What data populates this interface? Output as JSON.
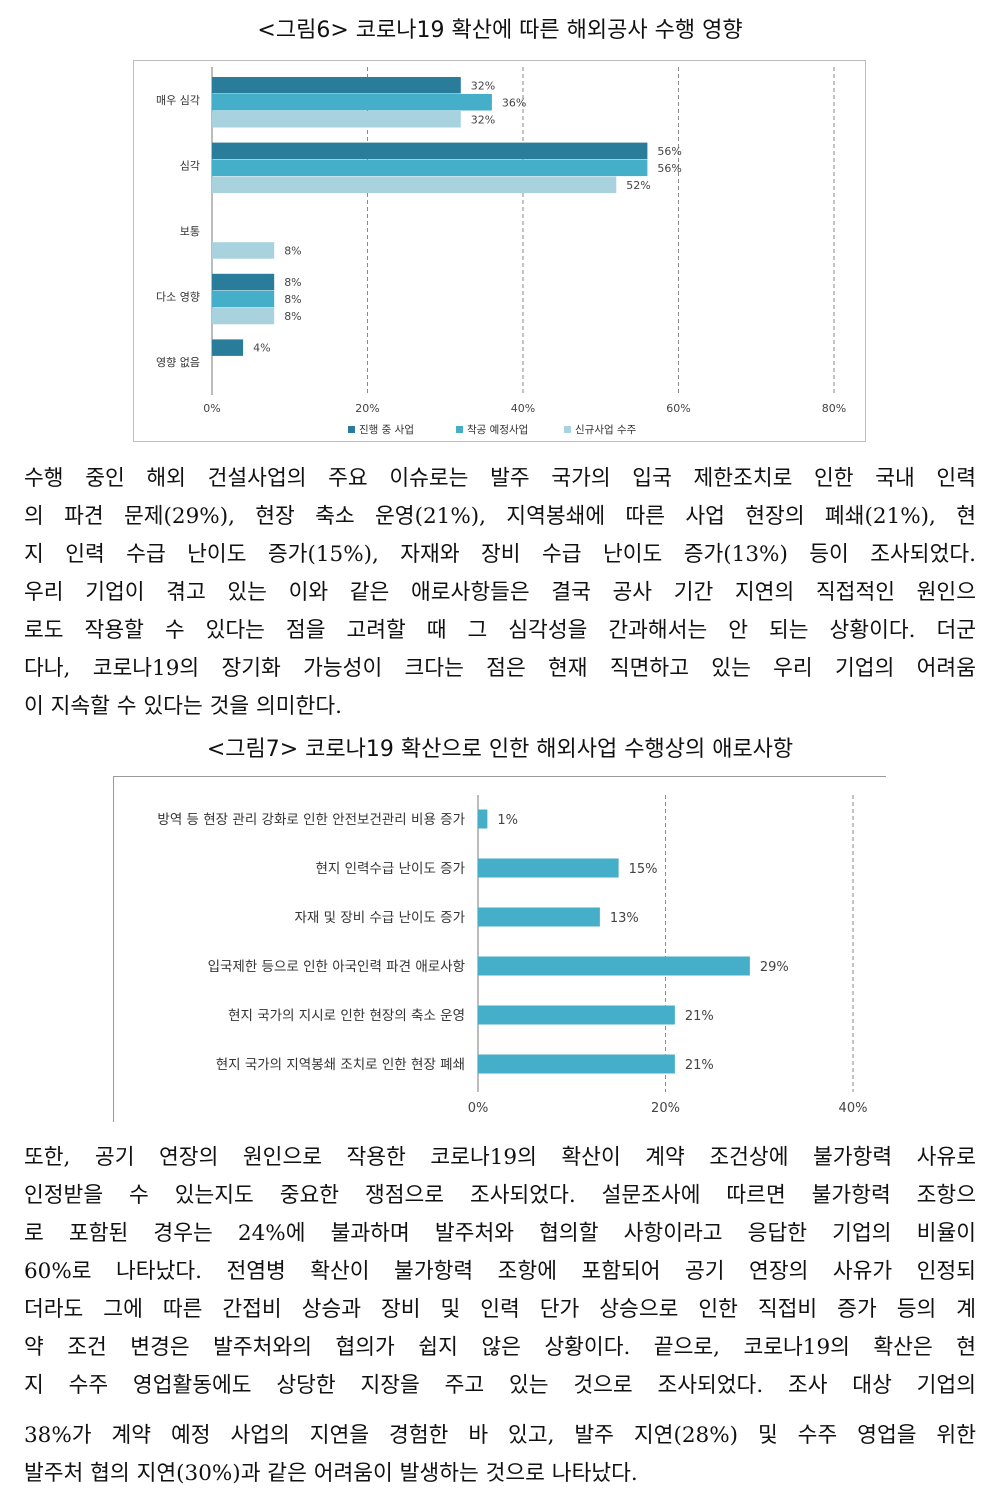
{
  "figure6": {
    "caption": "<그림6> 코로나19 확산에 따른 해외공사 수행 영향",
    "chart_data": {
      "type": "bar",
      "orientation": "horizontal",
      "categories": [
        "매우 심각",
        "심각",
        "보통",
        "다소 영향",
        "영향 없음"
      ],
      "series": [
        {
          "name": "진행 중 사업",
          "color": "#2a7d9a",
          "values": [
            32,
            56,
            null,
            8,
            4
          ],
          "labels": [
            "32%",
            "56%",
            "",
            "8%",
            "4%"
          ]
        },
        {
          "name": "착공 예정사업",
          "color": "#45aec9",
          "values": [
            36,
            56,
            null,
            8,
            null
          ],
          "labels": [
            "36%",
            "56%",
            "",
            "8%",
            ""
          ]
        },
        {
          "name": "신규사업 수주",
          "color": "#a9d2df",
          "values": [
            32,
            52,
            8,
            8,
            null
          ],
          "labels": [
            "32%",
            "52%",
            "8%",
            "8%",
            ""
          ]
        }
      ],
      "xlim": [
        0,
        80
      ],
      "xticks": [
        "0%",
        "20%",
        "40%",
        "60%",
        "80%"
      ],
      "grid": "vertical-dashed",
      "legend": "bottom"
    }
  },
  "paragraph1": [
    "수행 중인 해외 건설사업의 주요 이슈로는 발주 국가의 입국 제한조치로 인한 국내 인력",
    "의 파견 문제(29%), 현장 축소 운영(21%), 지역봉쇄에 따른 사업 현장의 폐쇄(21%), 현",
    "지 인력 수급 난이도 증가(15%), 자재와 장비 수급 난이도 증가(13%) 등이 조사되었다.",
    "우리 기업이 겪고 있는 이와 같은 애로사항들은 결국 공사 기간 지연의 직접적인 원인으",
    "로도 작용할 수 있다는 점을 고려할 때 그 심각성을 간과해서는 안 되는 상황이다. 더군",
    "다나, 코로나19의 장기화 가능성이 크다는 점은 현재 직면하고 있는 우리 기업의 어려움",
    "이 지속할 수 있다는 것을 의미한다."
  ],
  "figure7": {
    "caption": "<그림7> 코로나19 확산으로 인한 해외사업 수행상의 애로사항",
    "chart_data": {
      "type": "bar",
      "orientation": "horizontal",
      "categories": [
        "방역 등 현장 관리 강화로 인한 안전보건관리 비용 증가",
        "현지 인력수급 난이도 증가",
        "자재 및 장비 수급 난이도 증가",
        "입국제한 등으로 인한 아국인력 파견 애로사항",
        "현지 국가의 지시로 인한 현장의 축소 운영",
        "현지 국가의 지역봉쇄 조치로 인한 현장 폐쇄"
      ],
      "values": [
        1,
        15,
        13,
        29,
        21,
        21
      ],
      "labels": [
        "1%",
        "15%",
        "13%",
        "29%",
        "21%",
        "21%"
      ],
      "color": "#45aec9",
      "xlim": [
        0,
        40
      ],
      "xticks": [
        "0%",
        "20%",
        "40%"
      ],
      "grid": "vertical-dashed"
    }
  },
  "paragraph2": [
    "또한, 공기 연장의 원인으로 작용한 코로나19의 확산이 계약 조건상에 불가항력 사유로",
    "인정받을 수 있는지도 중요한 쟁점으로 조사되었다. 설문조사에 따르면 불가항력 조항으",
    "로 포함된 경우는 24%에 불과하며 발주처와 협의할 사항이라고 응답한 기업의 비율이",
    "60%로 나타났다. 전염병 확산이 불가항력 조항에 포함되어 공기 연장의 사유가 인정되",
    "더라도 그에 따른 간접비 상승과 장비 및 인력 단가 상승으로 인한 직접비 증가 등의 계",
    "약 조건 변경은 발주처와의 협의가 쉽지 않은 상황이다. 끝으로, 코로나19의 확산은 현",
    "지 수주 영업활동에도 상당한 지장을 주고 있는 것으로 조사되었다. 조사 대상 기업의",
    "38%가 계약 예정 사업의 지연을 경험한 바 있고, 발주 지연(28%) 및 수주 영업을 위한",
    "발주처 협의 지연(30%)과 같은 어려움이 발생하는 것으로 나타났다."
  ]
}
